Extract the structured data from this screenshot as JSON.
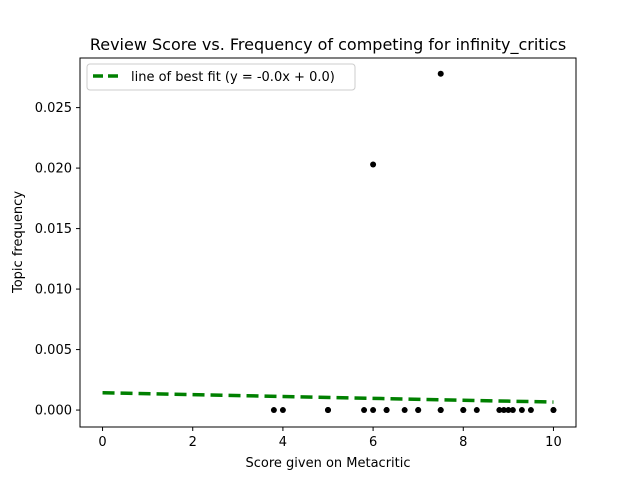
{
  "chart_data": {
    "type": "scatter",
    "title": "Review Score vs. Frequency of competing for infinity_critics",
    "xlabel": "Score given on Metacritic",
    "ylabel": "Topic frequency",
    "xlim": [
      -0.5,
      10.5
    ],
    "ylim": [
      -0.0014,
      0.0291
    ],
    "xticks": [
      0,
      2,
      4,
      6,
      8,
      10
    ],
    "xtick_labels": [
      "0",
      "2",
      "4",
      "6",
      "8",
      "10"
    ],
    "yticks": [
      0.0,
      0.005,
      0.01,
      0.015,
      0.02,
      0.025
    ],
    "ytick_labels": [
      "0.000",
      "0.005",
      "0.010",
      "0.015",
      "0.020",
      "0.025"
    ],
    "grid": false,
    "legend_position": "top-left",
    "points": {
      "x": [
        3.8,
        4.0,
        5.0,
        5.0,
        5.0,
        5.8,
        6.0,
        6.0,
        6.3,
        6.3,
        6.7,
        7.0,
        7.0,
        7.5,
        7.5,
        7.5,
        8.0,
        8.0,
        8.3,
        8.8,
        8.9,
        9.0,
        9.1,
        9.3,
        9.5,
        10.0,
        10.0
      ],
      "y": [
        0.0,
        0.0,
        0.0,
        0.0,
        0.0,
        0.0,
        0.0,
        0.0203,
        0.0,
        0.0,
        0.0,
        0.0,
        0.0,
        0.0,
        0.0,
        0.0278,
        0.0,
        0.0,
        0.0,
        0.0,
        0.0,
        0.0,
        0.0,
        0.0,
        0.0,
        0.0,
        0.0
      ],
      "color": "#000000"
    },
    "fit_line": {
      "name": "line of best fit (y = -0.0x + 0.0)",
      "x": [
        0,
        10
      ],
      "y": [
        0.00143,
        0.00066
      ],
      "color": "#008000",
      "style": "dashed"
    }
  }
}
